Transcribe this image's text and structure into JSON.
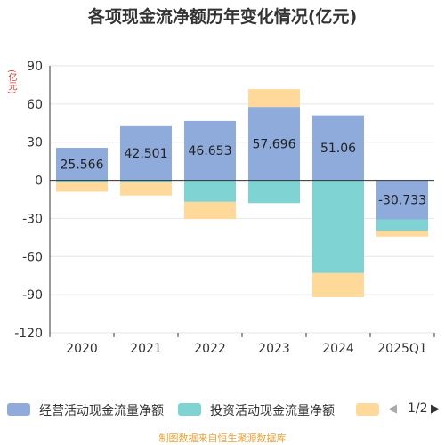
{
  "title": "各项现金流净额历年变化情况(亿元)",
  "source_note": "制图数据来自恒生聚源数据库",
  "colors": {
    "operating": "#8eabdb",
    "investing": "#7fd3d3",
    "financing": "#ffd99a",
    "axis": "#333333",
    "grid": "#e6e6e6",
    "unit": "#e53935",
    "pager_disabled": "#aaaaaa",
    "pager_active": "#333333"
  },
  "legend": {
    "items": [
      {
        "label": "经营活动现金流量净额",
        "color": "#8eabdb"
      },
      {
        "label": "投资活动现金流量净额",
        "color": "#7fd3d3"
      },
      {
        "label": "",
        "color": "#ffd99a"
      }
    ],
    "pager_text": "1/2",
    "prev_icon": "triangle-left-icon",
    "next_icon": "triangle-right-icon"
  },
  "chart_data": {
    "type": "bar",
    "stacked": true,
    "title": "各项现金流净额历年变化情况(亿元)",
    "ylabel": "(亿元)",
    "ylim": [
      -120,
      90
    ],
    "yticks": [
      90,
      60,
      30,
      0,
      -30,
      -60,
      -90,
      -120
    ],
    "grid": true,
    "legend_position": "bottom",
    "categories": [
      "2020",
      "2021",
      "2022",
      "2023",
      "2024",
      "2025Q1"
    ],
    "series": [
      {
        "name": "经营活动现金流量净额",
        "values": [
          25.566,
          42.501,
          46.653,
          57.696,
          51.06,
          -30.733
        ],
        "labels": [
          "25.566",
          "42.501",
          "46.653",
          "57.696",
          "51.06",
          "-30.733"
        ]
      },
      {
        "name": "投资活动现金流量净额",
        "values": [
          -1.5,
          -1.5,
          -17,
          -18,
          -73,
          -9
        ]
      },
      {
        "values": [
          -7.5,
          -10.5,
          -13.5,
          14,
          -19,
          -4.5
        ]
      }
    ]
  }
}
